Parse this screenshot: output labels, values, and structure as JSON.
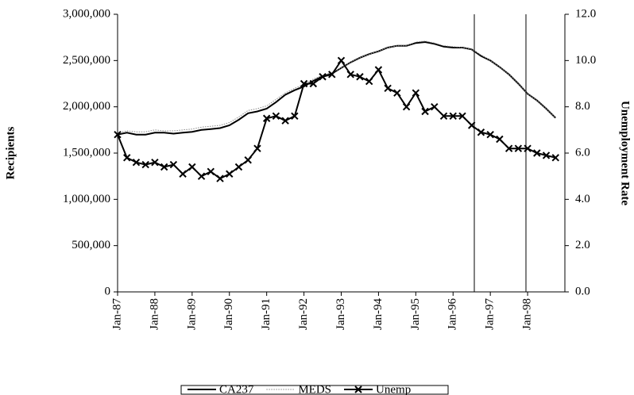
{
  "chart_data": {
    "type": "line",
    "y_label": "Recipients",
    "y2_label": "Unemployment Rate",
    "categories": [
      "Jan-87",
      null,
      null,
      null,
      "Jan-88",
      null,
      null,
      null,
      "Jan-89",
      null,
      null,
      null,
      "Jan-90",
      null,
      null,
      null,
      "Jan-91",
      null,
      null,
      null,
      "Jan-92",
      null,
      null,
      null,
      "Jan-93",
      null,
      null,
      null,
      "Jan-94",
      null,
      null,
      null,
      "Jan-95",
      null,
      null,
      null,
      "Jan-96",
      null,
      null,
      null,
      "Jan-97",
      null,
      null,
      null,
      "Jan-98",
      null,
      null,
      null
    ],
    "series": [
      {
        "name": "CA237",
        "color": "#000000",
        "style": "solid",
        "values": [
          1700000,
          1720000,
          1700000,
          1700000,
          1720000,
          1720000,
          1710000,
          1720000,
          1730000,
          1750000,
          1760000,
          1770000,
          1800000,
          1860000,
          1930000,
          1950000,
          1980000,
          2050000,
          2130000,
          2180000,
          2220000,
          2280000,
          2330000,
          2360000,
          2420000,
          2480000,
          2530000,
          2570000,
          2600000,
          2640000,
          2660000,
          2660000,
          2690000,
          2700000,
          2680000,
          2650000,
          2640000,
          2640000,
          2620000,
          2550000,
          2500000,
          2430000,
          2350000,
          2250000,
          2140000,
          2070000,
          1980000,
          1880000
        ]
      },
      {
        "name": "MEDS",
        "color": "#888888",
        "style": "dotted",
        "values": [
          1720000,
          1740000,
          1730000,
          1730000,
          1750000,
          1740000,
          1740000,
          1750000,
          1760000,
          1780000,
          1790000,
          1800000,
          1830000,
          1890000,
          1960000,
          1980000,
          2010000,
          2080000,
          2150000,
          2200000,
          2240000,
          2300000,
          2340000,
          2370000,
          2420000,
          2480000,
          2530000,
          2570000,
          2600000,
          2640000,
          2660000,
          2660000,
          2700000,
          2710000,
          2690000,
          2660000,
          2650000,
          2640000,
          2620000,
          2560000,
          2500000,
          2430000,
          2350000,
          2250000,
          2140000,
          2070000,
          1980000,
          1880000
        ]
      },
      {
        "name": "Unemp",
        "color": "#000000",
        "style": "solid",
        "marker": "x",
        "axis": "y2",
        "values": [
          6.8,
          5.8,
          5.6,
          5.5,
          5.6,
          5.4,
          5.5,
          5.1,
          5.4,
          5.0,
          5.2,
          4.9,
          5.1,
          5.4,
          5.7,
          6.2,
          7.5,
          7.6,
          7.4,
          7.6,
          9.0,
          9.0,
          9.3,
          9.4,
          10.0,
          9.4,
          9.3,
          9.1,
          9.6,
          8.8,
          8.6,
          8.0,
          8.6,
          7.8,
          8.0,
          7.6,
          7.6,
          7.6,
          7.2,
          6.9,
          6.8,
          6.6,
          6.2,
          6.2,
          6.2,
          6.0,
          5.9,
          5.8
        ]
      }
    ],
    "ylim": [
      0,
      3000000
    ],
    "yticks": [
      {
        "value": 0,
        "label": "0"
      },
      {
        "value": 500000,
        "label": "500,000"
      },
      {
        "value": 1000000,
        "label": "1,000,000"
      },
      {
        "value": 1500000,
        "label": "1,500,000"
      },
      {
        "value": 2000000,
        "label": "2,000,000"
      },
      {
        "value": 2500000,
        "label": "2,500,000"
      },
      {
        "value": 3000000,
        "label": "3,000,000"
      }
    ],
    "y2lim": [
      0,
      12
    ],
    "y2ticks": [
      {
        "value": 0,
        "label": "0.0"
      },
      {
        "value": 2,
        "label": "2.0"
      },
      {
        "value": 4,
        "label": "4.0"
      },
      {
        "value": 6,
        "label": "6.0"
      },
      {
        "value": 8,
        "label": "8.0"
      },
      {
        "value": 10,
        "label": "10.0"
      },
      {
        "value": 12,
        "label": "12.0"
      }
    ],
    "legend": "bottom"
  }
}
